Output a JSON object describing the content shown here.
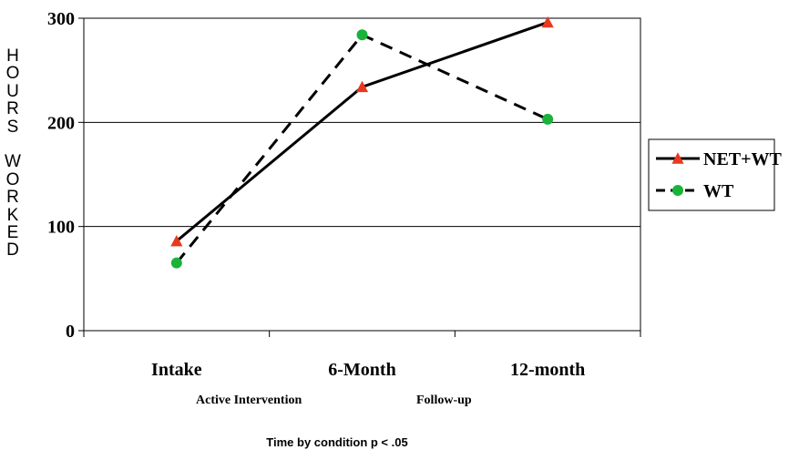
{
  "chart_data": {
    "type": "line",
    "categories": [
      "Intake",
      "6-Month",
      "12-month"
    ],
    "series": [
      {
        "name": "NET+WT",
        "values": [
          86,
          234,
          296
        ],
        "color": "#e8391e",
        "marker": "triangle",
        "line": "solid"
      },
      {
        "name": "WT",
        "values": [
          65,
          284,
          203
        ],
        "color": "#19b33a",
        "marker": "circle",
        "line": "dashed"
      }
    ],
    "ylim": [
      0,
      300
    ],
    "yticks": [
      "0",
      "100",
      "200",
      "300"
    ],
    "ylabel": "HOURS WORKED",
    "xlabel": "",
    "grid": "horizontal",
    "legend_position": "right"
  },
  "ylabel_letters": [
    "H",
    "O",
    "U",
    "R",
    "S",
    "",
    "W",
    "O",
    "R",
    "K",
    "E",
    "D"
  ],
  "phase_labels": {
    "active": "Active Intervention",
    "followup": "Follow-up"
  },
  "footnote": "Time by condition p < .05"
}
